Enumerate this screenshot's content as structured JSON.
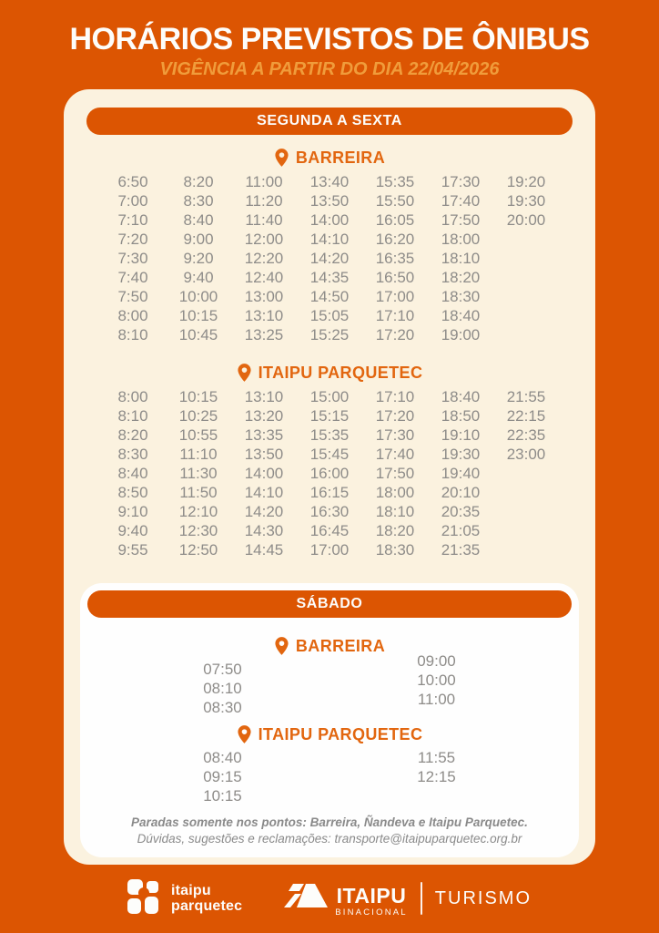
{
  "header": {
    "title": "HORÁRIOS PREVISTOS DE ÔNIBUS",
    "subtitle": "VIGÊNCIA A PARTIR DO DIA 22/04/2026"
  },
  "weekday": {
    "label": "SEGUNDA A SEXTA",
    "barreira": {
      "name": "BARREIRA",
      "columns": [
        [
          "6:50",
          "7:00",
          "7:10",
          "7:20",
          "7:30",
          "7:40",
          "7:50",
          "8:00",
          "8:10"
        ],
        [
          "8:20",
          "8:30",
          "8:40",
          "9:00",
          "9:20",
          "9:40",
          "10:00",
          "10:15",
          "10:45"
        ],
        [
          "11:00",
          "11:20",
          "11:40",
          "12:00",
          "12:20",
          "12:40",
          "13:00",
          "13:10",
          "13:25"
        ],
        [
          "13:40",
          "13:50",
          "14:00",
          "14:10",
          "14:20",
          "14:35",
          "14:50",
          "15:05",
          "15:25"
        ],
        [
          "15:35",
          "15:50",
          "16:05",
          "16:20",
          "16:35",
          "16:50",
          "17:00",
          "17:10",
          "17:20"
        ],
        [
          "17:30",
          "17:40",
          "17:50",
          "18:00",
          "18:10",
          "18:20",
          "18:30",
          "18:40",
          "19:00"
        ],
        [
          "19:20",
          "19:30",
          "20:00"
        ]
      ]
    },
    "parquetec": {
      "name": "ITAIPU PARQUETEC",
      "columns": [
        [
          "8:00",
          "8:10",
          "8:20",
          "8:30",
          "8:40",
          "8:50",
          "9:10",
          "9:40",
          "9:55"
        ],
        [
          "10:15",
          "10:25",
          "10:55",
          "11:10",
          "11:30",
          "11:50",
          "12:10",
          "12:30",
          "12:50"
        ],
        [
          "13:10",
          "13:20",
          "13:35",
          "13:50",
          "14:00",
          "14:10",
          "14:20",
          "14:30",
          "14:45"
        ],
        [
          "15:00",
          "15:15",
          "15:35",
          "15:45",
          "16:00",
          "16:15",
          "16:30",
          "16:45",
          "17:00"
        ],
        [
          "17:10",
          "17:20",
          "17:30",
          "17:40",
          "17:50",
          "18:00",
          "18:10",
          "18:20",
          "18:30"
        ],
        [
          "18:40",
          "18:50",
          "19:10",
          "19:30",
          "19:40",
          "20:10",
          "20:35",
          "21:05",
          "21:35"
        ],
        [
          "21:55",
          "22:15",
          "22:35",
          "23:00"
        ]
      ]
    }
  },
  "saturday": {
    "label": "SÁBADO",
    "barreira": {
      "name": "BARREIRA",
      "columns": [
        [
          "07:50",
          "08:10",
          "08:30"
        ],
        [
          "09:00",
          "10:00",
          "11:00"
        ]
      ]
    },
    "parquetec": {
      "name": "ITAIPU PARQUETEC",
      "columns": [
        [
          "08:40",
          "09:15",
          "10:15"
        ],
        [
          "11:55",
          "12:15"
        ]
      ]
    },
    "notes": {
      "line1": "Paradas somente nos pontos: Barreira, Ñandeva e Itaipu Parquetec.",
      "line2": "Dúvidas, sugestões e reclamações: transporte@itaipuparquetec.org.br"
    }
  },
  "footer": {
    "parquetec_logo": {
      "line1": "itaipu",
      "line2": "parquetec"
    },
    "itaipu_logo": {
      "name": "ITAIPU",
      "sub": "BINACIONAL",
      "right": "TURISMO"
    }
  },
  "colors": {
    "background": "#DC5502",
    "card_cream": "#FBF2DF",
    "card_white": "#FEFEFE",
    "accent_orange": "#E2660F",
    "subtitle_orange": "#F09C3B",
    "time_gray": "#8E8C89",
    "notes_gray": "#8A8A8A"
  }
}
